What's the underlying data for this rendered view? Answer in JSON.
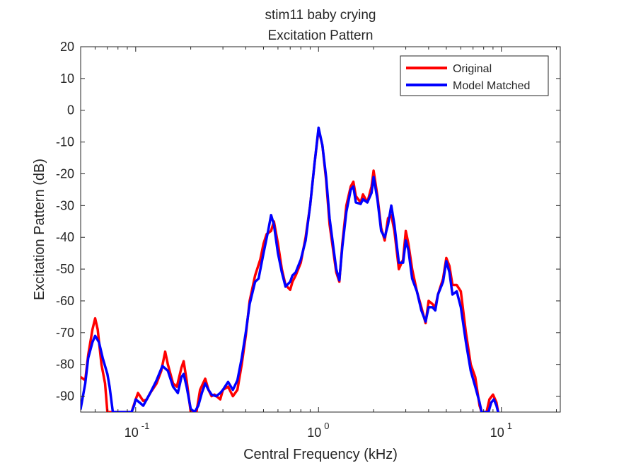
{
  "chart_data": {
    "type": "line",
    "title": "stim11 baby crying",
    "subtitle": "Excitation Pattern",
    "xlabel": "Central Frequency (kHz)",
    "ylabel": "Excitation Pattern (dB)",
    "x_scale": "log",
    "xlim": [
      0.05,
      21
    ],
    "ylim": [
      -95,
      20
    ],
    "yticks": [
      20,
      10,
      0,
      -10,
      -20,
      -30,
      -40,
      -50,
      -60,
      -70,
      -80,
      -90
    ],
    "xticks": [
      {
        "value": 0.1,
        "base": "10",
        "exp": "-1"
      },
      {
        "value": 1,
        "base": "10",
        "exp": "0"
      },
      {
        "value": 10,
        "base": "10",
        "exp": "1"
      }
    ],
    "grid": false,
    "legend_position": "top-right",
    "series": [
      {
        "name": "Original",
        "color": "#ff0000",
        "points": [
          [
            0.05,
            -84
          ],
          [
            0.053,
            -85
          ],
          [
            0.055,
            -77
          ],
          [
            0.058,
            -69
          ],
          [
            0.06,
            -65.5
          ],
          [
            0.062,
            -69
          ],
          [
            0.065,
            -80
          ],
          [
            0.068,
            -86
          ],
          [
            0.07,
            -95
          ],
          [
            0.095,
            -95
          ],
          [
            0.1,
            -91
          ],
          [
            0.103,
            -89
          ],
          [
            0.11,
            -91.5
          ],
          [
            0.115,
            -91
          ],
          [
            0.12,
            -89
          ],
          [
            0.13,
            -86
          ],
          [
            0.138,
            -82
          ],
          [
            0.145,
            -76
          ],
          [
            0.15,
            -80
          ],
          [
            0.16,
            -86
          ],
          [
            0.168,
            -87
          ],
          [
            0.178,
            -81
          ],
          [
            0.183,
            -79
          ],
          [
            0.19,
            -85
          ],
          [
            0.2,
            -95
          ],
          [
            0.215,
            -95
          ],
          [
            0.225,
            -88
          ],
          [
            0.24,
            -84.5
          ],
          [
            0.25,
            -88
          ],
          [
            0.26,
            -90
          ],
          [
            0.27,
            -89.5
          ],
          [
            0.29,
            -91
          ],
          [
            0.3,
            -88
          ],
          [
            0.32,
            -87
          ],
          [
            0.34,
            -90
          ],
          [
            0.36,
            -88
          ],
          [
            0.38,
            -80
          ],
          [
            0.4,
            -71
          ],
          [
            0.42,
            -60
          ],
          [
            0.45,
            -52
          ],
          [
            0.48,
            -47
          ],
          [
            0.5,
            -42
          ],
          [
            0.52,
            -39
          ],
          [
            0.55,
            -38
          ],
          [
            0.57,
            -35
          ],
          [
            0.6,
            -42
          ],
          [
            0.63,
            -50
          ],
          [
            0.66,
            -55
          ],
          [
            0.7,
            -56.5
          ],
          [
            0.72,
            -54
          ],
          [
            0.75,
            -52
          ],
          [
            0.8,
            -48
          ],
          [
            0.85,
            -40
          ],
          [
            0.9,
            -30
          ],
          [
            0.95,
            -17
          ],
          [
            1.0,
            -6
          ],
          [
            1.05,
            -11
          ],
          [
            1.1,
            -22
          ],
          [
            1.15,
            -36
          ],
          [
            1.25,
            -51
          ],
          [
            1.3,
            -54
          ],
          [
            1.35,
            -42
          ],
          [
            1.42,
            -30
          ],
          [
            1.5,
            -24
          ],
          [
            1.55,
            -22.5
          ],
          [
            1.6,
            -27
          ],
          [
            1.7,
            -29
          ],
          [
            1.75,
            -26.5
          ],
          [
            1.85,
            -29
          ],
          [
            1.95,
            -24
          ],
          [
            2.0,
            -19
          ],
          [
            2.1,
            -27
          ],
          [
            2.2,
            -37
          ],
          [
            2.3,
            -41
          ],
          [
            2.4,
            -34
          ],
          [
            2.5,
            -33
          ],
          [
            2.6,
            -38
          ],
          [
            2.75,
            -50
          ],
          [
            2.9,
            -47
          ],
          [
            3.0,
            -38
          ],
          [
            3.1,
            -42
          ],
          [
            3.25,
            -50
          ],
          [
            3.45,
            -57
          ],
          [
            3.65,
            -62
          ],
          [
            3.85,
            -67
          ],
          [
            4.0,
            -60
          ],
          [
            4.2,
            -61
          ],
          [
            4.35,
            -62
          ],
          [
            4.5,
            -58
          ],
          [
            4.8,
            -53
          ],
          [
            5.0,
            -46.5
          ],
          [
            5.2,
            -49
          ],
          [
            5.4,
            -55
          ],
          [
            5.7,
            -55
          ],
          [
            6.0,
            -57
          ],
          [
            6.4,
            -70
          ],
          [
            6.8,
            -80
          ],
          [
            7.2,
            -84
          ],
          [
            7.6,
            -93
          ],
          [
            7.8,
            -95
          ],
          [
            8.3,
            -95
          ],
          [
            8.6,
            -91
          ],
          [
            9.0,
            -89.5
          ],
          [
            9.4,
            -92
          ],
          [
            9.6,
            -95
          ]
        ]
      },
      {
        "name": "Model Matched",
        "color": "#0000ff",
        "points": [
          [
            0.05,
            -94
          ],
          [
            0.053,
            -86
          ],
          [
            0.055,
            -78
          ],
          [
            0.058,
            -73
          ],
          [
            0.06,
            -71
          ],
          [
            0.063,
            -73
          ],
          [
            0.066,
            -78
          ],
          [
            0.07,
            -83
          ],
          [
            0.072,
            -87
          ],
          [
            0.075,
            -95
          ],
          [
            0.095,
            -95
          ],
          [
            0.098,
            -93
          ],
          [
            0.1,
            -91
          ],
          [
            0.105,
            -92
          ],
          [
            0.11,
            -93
          ],
          [
            0.12,
            -89
          ],
          [
            0.13,
            -85
          ],
          [
            0.14,
            -80.5
          ],
          [
            0.15,
            -82
          ],
          [
            0.16,
            -87
          ],
          [
            0.17,
            -89
          ],
          [
            0.178,
            -84
          ],
          [
            0.183,
            -83
          ],
          [
            0.19,
            -87
          ],
          [
            0.2,
            -94
          ],
          [
            0.21,
            -95
          ],
          [
            0.22,
            -93
          ],
          [
            0.23,
            -89
          ],
          [
            0.24,
            -86
          ],
          [
            0.25,
            -88
          ],
          [
            0.26,
            -89.5
          ],
          [
            0.275,
            -90
          ],
          [
            0.29,
            -89
          ],
          [
            0.3,
            -88
          ],
          [
            0.32,
            -85.5
          ],
          [
            0.34,
            -88
          ],
          [
            0.36,
            -85
          ],
          [
            0.38,
            -78
          ],
          [
            0.4,
            -70
          ],
          [
            0.42,
            -61
          ],
          [
            0.45,
            -54
          ],
          [
            0.47,
            -53
          ],
          [
            0.5,
            -45
          ],
          [
            0.53,
            -38
          ],
          [
            0.55,
            -33
          ],
          [
            0.57,
            -36
          ],
          [
            0.6,
            -45
          ],
          [
            0.63,
            -51
          ],
          [
            0.66,
            -55.5
          ],
          [
            0.7,
            -54
          ],
          [
            0.72,
            -52
          ],
          [
            0.75,
            -51
          ],
          [
            0.8,
            -47
          ],
          [
            0.85,
            -41
          ],
          [
            0.9,
            -30
          ],
          [
            0.95,
            -17
          ],
          [
            1.0,
            -5.5
          ],
          [
            1.05,
            -11
          ],
          [
            1.1,
            -21
          ],
          [
            1.15,
            -34
          ],
          [
            1.25,
            -50
          ],
          [
            1.3,
            -53.5
          ],
          [
            1.35,
            -43
          ],
          [
            1.42,
            -32
          ],
          [
            1.5,
            -25
          ],
          [
            1.55,
            -24
          ],
          [
            1.6,
            -29
          ],
          [
            1.7,
            -29.5
          ],
          [
            1.75,
            -28
          ],
          [
            1.85,
            -29
          ],
          [
            1.95,
            -26
          ],
          [
            2.0,
            -21
          ],
          [
            2.1,
            -28
          ],
          [
            2.2,
            -38
          ],
          [
            2.3,
            -40
          ],
          [
            2.4,
            -36
          ],
          [
            2.5,
            -30
          ],
          [
            2.6,
            -36
          ],
          [
            2.75,
            -48
          ],
          [
            2.9,
            -48
          ],
          [
            3.0,
            -41
          ],
          [
            3.1,
            -44
          ],
          [
            3.25,
            -53
          ],
          [
            3.45,
            -57
          ],
          [
            3.65,
            -63
          ],
          [
            3.85,
            -66.5
          ],
          [
            4.0,
            -62
          ],
          [
            4.2,
            -62
          ],
          [
            4.35,
            -63
          ],
          [
            4.5,
            -58
          ],
          [
            4.8,
            -54
          ],
          [
            5.0,
            -47.5
          ],
          [
            5.2,
            -51
          ],
          [
            5.4,
            -58
          ],
          [
            5.7,
            -57
          ],
          [
            6.0,
            -62
          ],
          [
            6.4,
            -73
          ],
          [
            6.8,
            -82
          ],
          [
            7.2,
            -87
          ],
          [
            7.6,
            -92
          ],
          [
            7.8,
            -95
          ],
          [
            8.5,
            -95
          ],
          [
            8.8,
            -92
          ],
          [
            9.1,
            -91
          ],
          [
            9.4,
            -93
          ],
          [
            9.6,
            -95
          ]
        ]
      }
    ]
  }
}
